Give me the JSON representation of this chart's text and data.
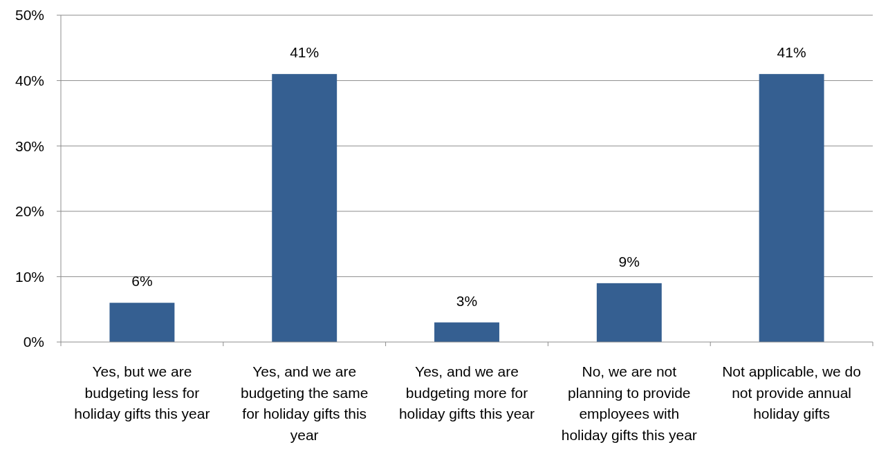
{
  "chart_data": {
    "type": "bar",
    "categories": [
      "Yes, but we are budgeting less for holiday gifts this year",
      "Yes, and we are budgeting the same for holiday gifts this year",
      "Yes, and we are budgeting more for holiday gifts this year",
      "No, we are not planning to provide employees with holiday gifts this year",
      "Not applicable, we do not provide annual holiday gifts"
    ],
    "values": [
      6,
      41,
      3,
      9,
      41
    ],
    "value_labels": [
      "6%",
      "41%",
      "3%",
      "9%",
      "41%"
    ],
    "color": "#355f91",
    "ylim": [
      0,
      50
    ],
    "yticks": [
      {
        "value": 0,
        "label": "0%"
      },
      {
        "value": 10,
        "label": "10%"
      },
      {
        "value": 20,
        "label": "20%"
      },
      {
        "value": 30,
        "label": "30%"
      },
      {
        "value": 40,
        "label": "40%"
      },
      {
        "value": 50,
        "label": "50%"
      }
    ],
    "grid": "y"
  }
}
